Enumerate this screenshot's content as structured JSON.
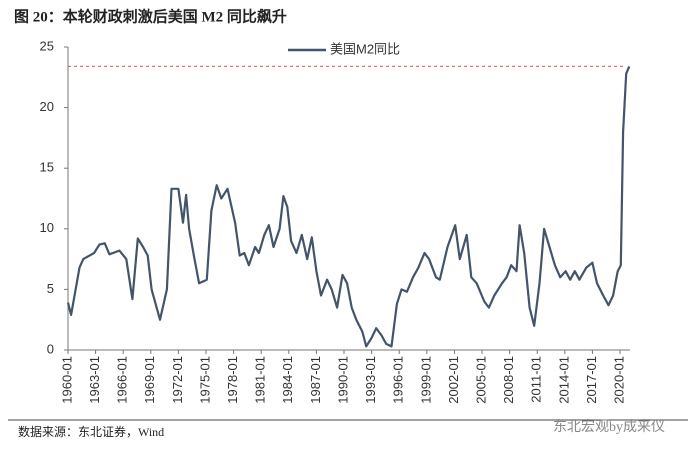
{
  "chart_data": {
    "type": "line",
    "title": "图 20：本轮财政刺激后美国 M2 同比飙升",
    "source": "数据来源：东北证券，Wind",
    "watermark": "东北宏观by成来仪",
    "x": [
      "1960-01",
      "1960-05",
      "1961-04",
      "1961-09",
      "1962-11",
      "1963-06",
      "1964-01",
      "1964-07",
      "1965-08",
      "1966-05",
      "1967-01",
      "1967-08",
      "1968-03",
      "1968-09",
      "1969-02",
      "1970-01",
      "1970-10",
      "1971-04",
      "1972-01",
      "1972-07",
      "1972-11",
      "1973-03",
      "1973-10",
      "1974-04",
      "1975-02",
      "1975-08",
      "1976-03",
      "1976-09",
      "1977-05",
      "1978-03",
      "1978-09",
      "1979-03",
      "1979-09",
      "1980-05",
      "1980-10",
      "1981-05",
      "1981-11",
      "1982-05",
      "1983-01",
      "1983-06",
      "1983-11",
      "1984-04",
      "1984-11",
      "1985-06",
      "1986-01",
      "1986-07",
      "1987-01",
      "1987-07",
      "1988-03",
      "1988-09",
      "1989-04",
      "1989-11",
      "1990-05",
      "1990-11",
      "1991-05",
      "1992-01",
      "1992-06",
      "1993-01",
      "1993-07",
      "1994-02",
      "1994-08",
      "1995-03",
      "1995-10",
      "1996-04",
      "1996-11",
      "1997-07",
      "1998-02",
      "1998-10",
      "1999-04",
      "2000-01",
      "2000-06",
      "2001-04",
      "2002-02",
      "2002-08",
      "2003-05",
      "2003-11",
      "2004-06",
      "2005-04",
      "2005-10",
      "2006-05",
      "2007-03",
      "2007-09",
      "2008-03",
      "2008-10",
      "2009-02",
      "2009-08",
      "2010-03",
      "2010-09",
      "2011-04",
      "2011-10",
      "2012-05",
      "2012-12",
      "2013-07",
      "2014-02",
      "2014-08",
      "2015-02",
      "2015-08",
      "2016-05",
      "2017-01",
      "2017-07",
      "2018-03",
      "2018-10",
      "2019-04",
      "2019-10",
      "2020-02",
      "2020-05",
      "2020-09",
      "2021-01"
    ],
    "series": [
      {
        "name": "美国M2同比",
        "color": "#44546a",
        "values": [
          3.9,
          2.9,
          6.8,
          7.5,
          8.0,
          8.7,
          8.8,
          7.9,
          8.2,
          7.5,
          4.2,
          9.2,
          8.5,
          7.8,
          5.0,
          2.5,
          5.0,
          13.3,
          13.3,
          10.5,
          12.8,
          10.0,
          7.5,
          5.5,
          5.8,
          11.5,
          13.6,
          12.5,
          13.3,
          10.5,
          7.8,
          8.0,
          7.0,
          8.5,
          8.0,
          9.5,
          10.3,
          8.5,
          10.0,
          12.7,
          11.8,
          9.0,
          8.0,
          9.5,
          7.5,
          9.3,
          6.5,
          4.5,
          5.8,
          5.0,
          3.5,
          6.2,
          5.5,
          3.5,
          2.5,
          1.5,
          0.3,
          1.0,
          1.8,
          1.2,
          0.5,
          0.3,
          3.8,
          5.0,
          4.8,
          6.0,
          6.8,
          8.0,
          7.5,
          6.0,
          5.8,
          8.5,
          10.3,
          7.5,
          9.5,
          6.0,
          5.5,
          4.0,
          3.5,
          4.5,
          5.5,
          6.0,
          7.0,
          6.5,
          10.3,
          8.0,
          3.5,
          2.0,
          5.5,
          10.0,
          8.5,
          7.0,
          6.0,
          6.5,
          5.8,
          6.5,
          5.8,
          6.8,
          7.2,
          5.5,
          4.5,
          3.7,
          4.5,
          6.5,
          7.0,
          18.0,
          22.8,
          23.4
        ]
      }
    ],
    "reference_line": {
      "value": 23.4,
      "color": "#e05050"
    },
    "xlim": [
      "1960-01",
      "2021-02"
    ],
    "xticks": [
      "1960-01",
      "1963-01",
      "1966-01",
      "1969-01",
      "1972-01",
      "1975-01",
      "1978-01",
      "1981-01",
      "1984-01",
      "1987-01",
      "1990-01",
      "1993-01",
      "1996-01",
      "1999-01",
      "2002-01",
      "2005-01",
      "2008-01",
      "2011-01",
      "2014-01",
      "2017-01",
      "2020-01"
    ],
    "ylim": [
      0,
      25
    ],
    "yticks": [
      0,
      5,
      10,
      15,
      20,
      25
    ],
    "grid": false,
    "legend": "top"
  }
}
